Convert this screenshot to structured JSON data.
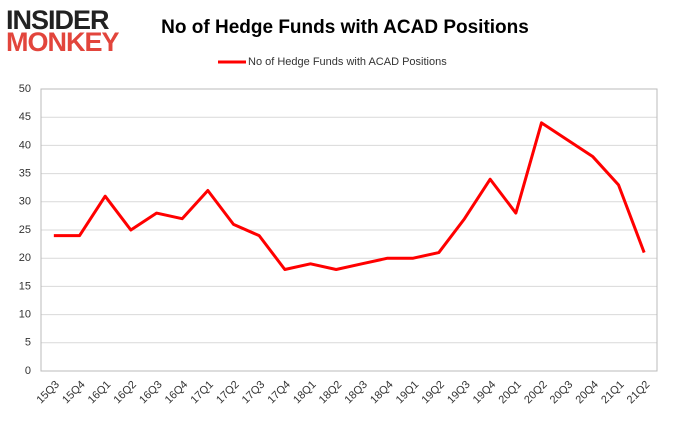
{
  "logo": {
    "line1": "INSIDER",
    "line2": "MONKEY"
  },
  "chart_data": {
    "type": "line",
    "title": "No of Hedge Funds with ACAD Positions",
    "categories": [
      "15Q3",
      "15Q4",
      "16Q1",
      "16Q2",
      "16Q3",
      "16Q4",
      "17Q1",
      "17Q2",
      "17Q3",
      "17Q4",
      "18Q1",
      "18Q2",
      "18Q3",
      "18Q4",
      "19Q1",
      "19Q2",
      "19Q3",
      "19Q4",
      "20Q1",
      "20Q2",
      "20Q3",
      "20Q4",
      "21Q1",
      "21Q2"
    ],
    "series": [
      {
        "name": "No of Hedge Funds with ACAD Positions",
        "color": "#ff0000",
        "values": [
          24,
          24,
          31,
          25,
          28,
          27,
          32,
          26,
          24,
          18,
          19,
          18,
          19,
          20,
          20,
          21,
          27,
          34,
          28,
          44,
          41,
          38,
          33,
          21
        ]
      }
    ],
    "ylim": [
      0,
      50
    ],
    "yticks": [
      0,
      5,
      10,
      15,
      20,
      25,
      30,
      35,
      40,
      45,
      50
    ],
    "grid": true,
    "legend": "top"
  }
}
